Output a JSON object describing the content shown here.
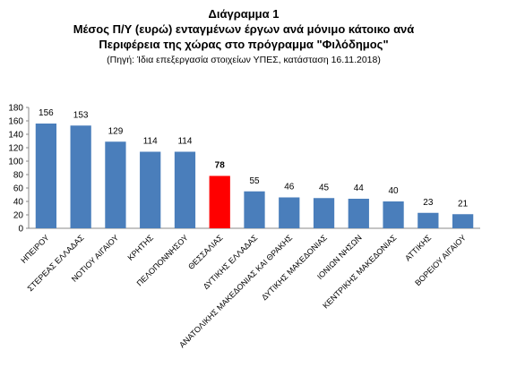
{
  "chart_data": {
    "type": "bar",
    "title": "Διάγραμμα 1",
    "title_lines": [
      "Μέσος Π/Υ (ευρώ)  ενταγμένων έργων ανά μόνιμο κάτοικο ανά",
      "Περιφέρεια της χώρας στο πρόγραμμα  \"Φιλόδημος\""
    ],
    "subtitle": "(Πηγή: Ίδια επεξεργασία στοιχείων ΥΠΕΣ, κατάσταση  16.11.2018)",
    "categories": [
      "ΗΠΕΙΡΟΥ",
      "ΣΤΕΡΕΑΣ ΕΛΛΑΔΑΣ",
      "ΝΟΤΙΟΥ ΑΙΓΑΙΟΥ",
      "ΚΡΗΤΗΣ",
      "ΠΕΛΟΠΟΝΝΗΣΟΥ",
      "ΘΕΣΣΑΛΙΑΣ",
      "ΔΥΤΙΚΗΣ ΕΛΛΑΔΑΣ",
      "ΑΝΑΤΟΛΙΚΗΣ ΜΑΚΕΔΟΝΙΑΣ ΚΑΙ ΘΡΑΚΗΣ",
      "ΔΥΤΙΚΗΣ ΜΑΚΕΔΟΝΙΑΣ",
      "ΙΟΝΙΩΝ ΝΗΣΩΝ",
      "ΚΕΝΤΡΙΚΗΣ ΜΑΚΕΔΟΝΙΑΣ",
      "ΑΤΤΙΚΗΣ",
      "ΒΟΡΕΙΟΥ ΑΙΓΑΙΟΥ"
    ],
    "values": [
      156,
      153,
      129,
      114,
      114,
      78,
      55,
      46,
      45,
      44,
      40,
      23,
      21
    ],
    "colors": [
      "#4a7ebb",
      "#4a7ebb",
      "#4a7ebb",
      "#4a7ebb",
      "#4a7ebb",
      "#ff0000",
      "#4a7ebb",
      "#4a7ebb",
      "#4a7ebb",
      "#4a7ebb",
      "#4a7ebb",
      "#4a7ebb",
      "#4a7ebb"
    ],
    "ylim": [
      0,
      180
    ],
    "yticks": [
      0,
      20,
      40,
      60,
      80,
      100,
      120,
      140,
      160,
      180
    ],
    "grid": false
  }
}
